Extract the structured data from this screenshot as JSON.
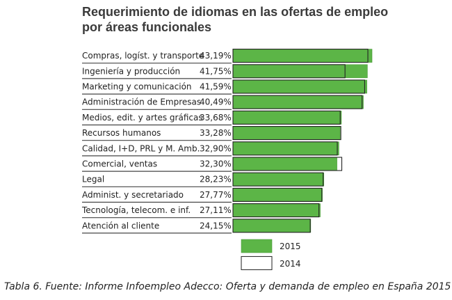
{
  "chart_data": {
    "type": "bar",
    "orientation": "horizontal",
    "title": "Requerimiento de idiomas en las ofertas de empleo",
    "subtitle": "por áreas funcionales",
    "categories": [
      "Compras, logíst. y transporte",
      "Ingeniería y producción",
      "Marketing y comunicación",
      "Administración de Empresas",
      "Medios, edit. y artes gráficas",
      "Recursos humanos",
      "Calidad, I+D, PRL y M. Amb.",
      "Comercial, ventas",
      "Legal",
      "Administ. y secretariado",
      "Tecnología, telecom. e inf.",
      "Atención al cliente"
    ],
    "value_labels": [
      "43,19%",
      "41,75%",
      "41,59%",
      "40,49%",
      "33,68%",
      "33,28%",
      "32,90%",
      "32,30%",
      "28,23%",
      "27,77%",
      "27,11%",
      "24,15%"
    ],
    "series": [
      {
        "name": "2015",
        "values": [
          43.19,
          41.75,
          41.59,
          40.49,
          33.68,
          33.28,
          32.9,
          32.3,
          28.23,
          27.77,
          27.11,
          24.15
        ],
        "color": "#5cb547"
      },
      {
        "name": "2014",
        "values": [
          41.9,
          34.8,
          40.9,
          40.1,
          33.3,
          33.5,
          32.4,
          33.8,
          28.0,
          27.6,
          26.7,
          24.0
        ],
        "color": "#ffffff"
      }
    ],
    "xlim": [
      0,
      45
    ],
    "grid": false,
    "legend_position": "bottom-right"
  },
  "caption": "Tabla 6. Fuente: Informe Infoempleo Adecco: Oferta y demanda de empleo en España 2015"
}
